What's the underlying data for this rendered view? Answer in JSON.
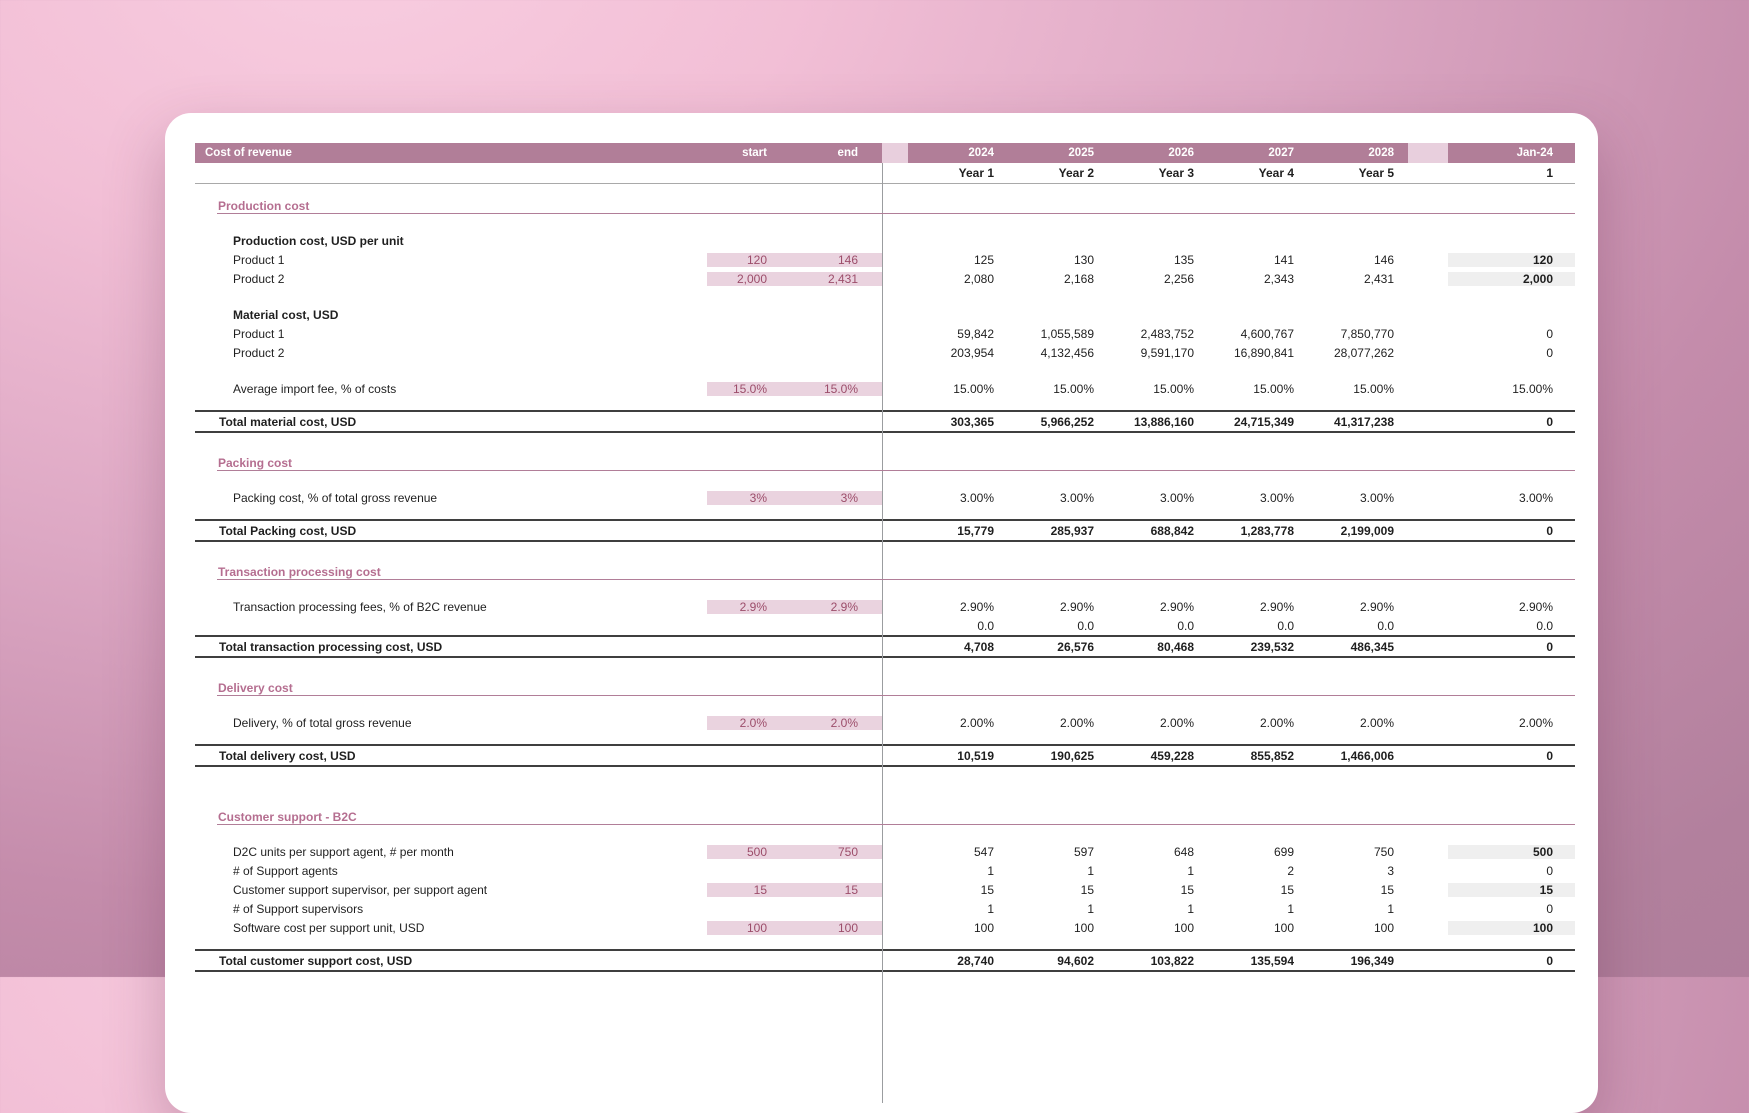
{
  "sheet": {
    "title": "Cost of revenue",
    "columns": {
      "start": "start",
      "end": "end",
      "month": "Jan-24",
      "month_sub": "1",
      "years": [
        "2024",
        "2025",
        "2026",
        "2027",
        "2028"
      ],
      "year_subs": [
        "Year 1",
        "Year 2",
        "Year 3",
        "Year 4",
        "Year 5"
      ]
    },
    "sections": [
      {
        "title": "Production cost",
        "rows": [
          {
            "kind": "group",
            "label": "Production cost, USD per unit"
          },
          {
            "kind": "data",
            "label": "Product 1",
            "start": "120",
            "end": "146",
            "values": [
              "125",
              "130",
              "135",
              "141",
              "146"
            ],
            "month": "120",
            "input": true,
            "month_input": true
          },
          {
            "kind": "data",
            "label": "Product 2",
            "start": "2,000",
            "end": "2,431",
            "values": [
              "2,080",
              "2,168",
              "2,256",
              "2,343",
              "2,431"
            ],
            "month": "2,000",
            "input": true,
            "month_input": true
          },
          {
            "kind": "spacer"
          },
          {
            "kind": "group",
            "label": "Material cost, USD"
          },
          {
            "kind": "data",
            "label": "Product 1",
            "values": [
              "59,842",
              "1,055,589",
              "2,483,752",
              "4,600,767",
              "7,850,770"
            ],
            "month": "0"
          },
          {
            "kind": "data",
            "label": "Product 2",
            "values": [
              "203,954",
              "4,132,456",
              "9,591,170",
              "16,890,841",
              "28,077,262"
            ],
            "month": "0"
          },
          {
            "kind": "spacer"
          },
          {
            "kind": "data",
            "label": "Average import fee, % of costs",
            "start": "15.0%",
            "end": "15.0%",
            "values": [
              "15.00%",
              "15.00%",
              "15.00%",
              "15.00%",
              "15.00%"
            ],
            "month": "15.00%",
            "input": true
          },
          {
            "kind": "spacer-sm"
          },
          {
            "kind": "total",
            "label": "Total material cost, USD",
            "values": [
              "303,365",
              "5,966,252",
              "13,886,160",
              "24,715,349",
              "41,317,238"
            ],
            "month": "0"
          }
        ]
      },
      {
        "title": "Packing cost",
        "rows": [
          {
            "kind": "data",
            "label": "Packing cost, % of total gross revenue",
            "start": "3%",
            "end": "3%",
            "values": [
              "3.00%",
              "3.00%",
              "3.00%",
              "3.00%",
              "3.00%"
            ],
            "month": "3.00%",
            "input": true
          },
          {
            "kind": "spacer-sm"
          },
          {
            "kind": "total",
            "label": "Total Packing cost, USD",
            "values": [
              "15,779",
              "285,937",
              "688,842",
              "1,283,778",
              "2,199,009"
            ],
            "month": "0"
          }
        ]
      },
      {
        "title": "Transaction processing cost",
        "rows": [
          {
            "kind": "data",
            "label": "Transaction processing fees, % of B2C revenue",
            "start": "2.9%",
            "end": "2.9%",
            "values": [
              "2.90%",
              "2.90%",
              "2.90%",
              "2.90%",
              "2.90%"
            ],
            "month": "2.90%",
            "input": true
          },
          {
            "kind": "data",
            "label": "",
            "values": [
              "0.0",
              "0.0",
              "0.0",
              "0.0",
              "0.0"
            ],
            "month": "0.0"
          },
          {
            "kind": "total",
            "label": "Total transaction processing cost, USD",
            "values": [
              "4,708",
              "26,576",
              "80,468",
              "239,532",
              "486,345"
            ],
            "month": "0"
          }
        ]
      },
      {
        "title": "Delivery cost",
        "rows": [
          {
            "kind": "data",
            "label": "Delivery, % of total gross revenue",
            "start": "2.0%",
            "end": "2.0%",
            "values": [
              "2.00%",
              "2.00%",
              "2.00%",
              "2.00%",
              "2.00%"
            ],
            "month": "2.00%",
            "input": true
          },
          {
            "kind": "spacer-sm"
          },
          {
            "kind": "total",
            "label": "Total delivery cost, USD",
            "values": [
              "10,519",
              "190,625",
              "459,228",
              "855,852",
              "1,466,006"
            ],
            "month": "0"
          }
        ]
      },
      {
        "title": "Customer support - B2C",
        "rows": [
          {
            "kind": "data",
            "label": "D2C units per support agent, # per month",
            "start": "500",
            "end": "750",
            "values": [
              "547",
              "597",
              "648",
              "699",
              "750"
            ],
            "month": "500",
            "input": true,
            "month_input": true
          },
          {
            "kind": "data",
            "label": "# of Support agents",
            "values": [
              "1",
              "1",
              "1",
              "2",
              "3"
            ],
            "month": "0"
          },
          {
            "kind": "data",
            "label": "Customer support supervisor, per support agent",
            "start": "15",
            "end": "15",
            "values": [
              "15",
              "15",
              "15",
              "15",
              "15"
            ],
            "month": "15",
            "input": true,
            "month_input": true
          },
          {
            "kind": "data",
            "label": "# of Support supervisors",
            "values": [
              "1",
              "1",
              "1",
              "1",
              "1"
            ],
            "month": "0"
          },
          {
            "kind": "data",
            "label": "Software cost per support unit, USD",
            "start": "100",
            "end": "100",
            "values": [
              "100",
              "100",
              "100",
              "100",
              "100"
            ],
            "month": "100",
            "input": true,
            "month_input": true
          },
          {
            "kind": "spacer-sm"
          },
          {
            "kind": "total",
            "label": "Total customer support cost, USD",
            "values": [
              "28,740",
              "94,602",
              "103,822",
              "135,594",
              "196,349"
            ],
            "month": "0"
          }
        ]
      }
    ]
  },
  "colors": {
    "header_bar": "#b17e98",
    "header_gap": "#e8cfdd",
    "input_cell_bg": "#ead3df",
    "input_cell_text": "#9c4d6a",
    "month_input_bg": "#efefef",
    "section_title": "#b56e90",
    "total_border": "#3f3f3f",
    "grid_line": "#a9a9a9",
    "background_light": "#f8cde0",
    "background_dark": "#ae7d9a"
  }
}
